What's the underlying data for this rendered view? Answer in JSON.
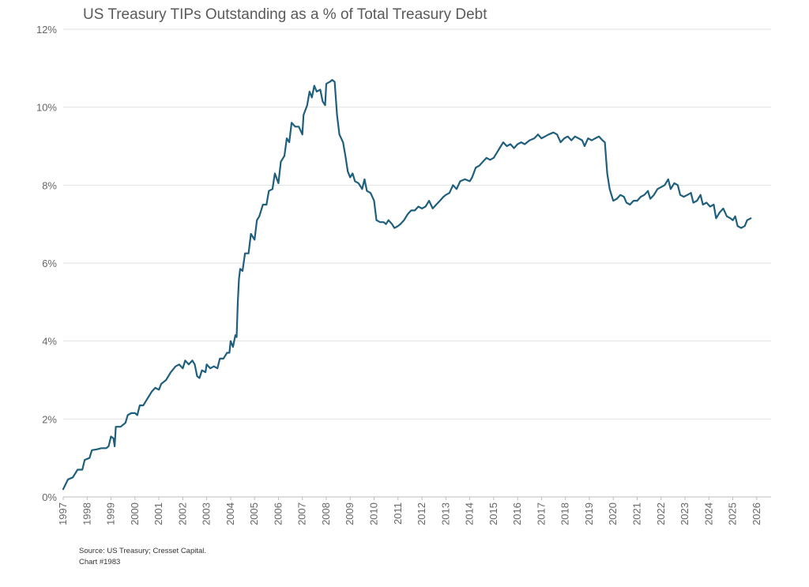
{
  "chart_data": {
    "type": "line",
    "title": "US Treasury TIPs Outstanding as a % of Total Treasury Debt",
    "xlabel": "",
    "ylabel": "",
    "x_ticks": [
      "1997",
      "1998",
      "1999",
      "2000",
      "2001",
      "2002",
      "2003",
      "2004",
      "2005",
      "2006",
      "2007",
      "2008",
      "2009",
      "2010",
      "2011",
      "2012",
      "2013",
      "2014",
      "2015",
      "2016",
      "2017",
      "2018",
      "2019",
      "2020",
      "2021",
      "2022",
      "2023",
      "2024",
      "2025",
      "2026"
    ],
    "y_ticks": [
      "0%",
      "2%",
      "4%",
      "6%",
      "8%",
      "10%",
      "12%"
    ],
    "xlim": [
      1997,
      2026.6
    ],
    "ylim": [
      0,
      12
    ],
    "grid": true,
    "color": "#1f5f7e",
    "series": [
      {
        "points": [
          [
            1997.0,
            0.2
          ],
          [
            1997.2,
            0.45
          ],
          [
            1997.4,
            0.5
          ],
          [
            1997.6,
            0.7
          ],
          [
            1997.8,
            0.7
          ],
          [
            1997.9,
            0.95
          ],
          [
            1998.1,
            1.0
          ],
          [
            1998.2,
            1.2
          ],
          [
            1998.4,
            1.22
          ],
          [
            1998.6,
            1.25
          ],
          [
            1998.8,
            1.25
          ],
          [
            1998.9,
            1.3
          ],
          [
            1999.0,
            1.55
          ],
          [
            1999.1,
            1.5
          ],
          [
            1999.15,
            1.3
          ],
          [
            1999.2,
            1.8
          ],
          [
            1999.4,
            1.8
          ],
          [
            1999.6,
            1.9
          ],
          [
            1999.7,
            2.1
          ],
          [
            1999.85,
            2.15
          ],
          [
            2000.0,
            2.15
          ],
          [
            2000.1,
            2.1
          ],
          [
            2000.2,
            2.35
          ],
          [
            2000.35,
            2.35
          ],
          [
            2000.5,
            2.5
          ],
          [
            2000.7,
            2.7
          ],
          [
            2000.85,
            2.8
          ],
          [
            2001.0,
            2.75
          ],
          [
            2001.1,
            2.9
          ],
          [
            2001.3,
            3.0
          ],
          [
            2001.5,
            3.2
          ],
          [
            2001.7,
            3.35
          ],
          [
            2001.85,
            3.4
          ],
          [
            2002.0,
            3.3
          ],
          [
            2002.1,
            3.5
          ],
          [
            2002.25,
            3.4
          ],
          [
            2002.4,
            3.5
          ],
          [
            2002.5,
            3.4
          ],
          [
            2002.6,
            3.1
          ],
          [
            2002.7,
            3.05
          ],
          [
            2002.8,
            3.25
          ],
          [
            2002.95,
            3.2
          ],
          [
            2003.0,
            3.4
          ],
          [
            2003.15,
            3.3
          ],
          [
            2003.3,
            3.35
          ],
          [
            2003.45,
            3.3
          ],
          [
            2003.55,
            3.55
          ],
          [
            2003.7,
            3.55
          ],
          [
            2003.85,
            3.7
          ],
          [
            2003.95,
            3.7
          ],
          [
            2004.0,
            4.0
          ],
          [
            2004.1,
            3.85
          ],
          [
            2004.2,
            4.15
          ],
          [
            2004.25,
            4.1
          ],
          [
            2004.3,
            5.0
          ],
          [
            2004.35,
            5.6
          ],
          [
            2004.4,
            5.85
          ],
          [
            2004.5,
            5.8
          ],
          [
            2004.6,
            6.25
          ],
          [
            2004.75,
            6.25
          ],
          [
            2004.85,
            6.75
          ],
          [
            2005.0,
            6.6
          ],
          [
            2005.1,
            7.1
          ],
          [
            2005.2,
            7.2
          ],
          [
            2005.35,
            7.5
          ],
          [
            2005.5,
            7.5
          ],
          [
            2005.6,
            7.85
          ],
          [
            2005.75,
            7.9
          ],
          [
            2005.85,
            8.3
          ],
          [
            2006.0,
            8.05
          ],
          [
            2006.1,
            8.6
          ],
          [
            2006.25,
            8.75
          ],
          [
            2006.35,
            9.2
          ],
          [
            2006.45,
            9.1
          ],
          [
            2006.55,
            9.6
          ],
          [
            2006.7,
            9.5
          ],
          [
            2006.85,
            9.5
          ],
          [
            2007.0,
            9.3
          ],
          [
            2007.05,
            9.8
          ],
          [
            2007.2,
            10.05
          ],
          [
            2007.3,
            10.4
          ],
          [
            2007.4,
            10.25
          ],
          [
            2007.5,
            10.55
          ],
          [
            2007.6,
            10.4
          ],
          [
            2007.75,
            10.45
          ],
          [
            2007.85,
            10.15
          ],
          [
            2007.95,
            10.05
          ],
          [
            2008.0,
            10.6
          ],
          [
            2008.15,
            10.65
          ],
          [
            2008.25,
            10.7
          ],
          [
            2008.35,
            10.65
          ],
          [
            2008.45,
            9.8
          ],
          [
            2008.55,
            9.3
          ],
          [
            2008.7,
            9.1
          ],
          [
            2008.8,
            8.75
          ],
          [
            2008.9,
            8.35
          ],
          [
            2009.0,
            8.2
          ],
          [
            2009.1,
            8.3
          ],
          [
            2009.2,
            8.1
          ],
          [
            2009.35,
            8.05
          ],
          [
            2009.5,
            7.9
          ],
          [
            2009.6,
            8.15
          ],
          [
            2009.7,
            7.85
          ],
          [
            2009.85,
            7.8
          ],
          [
            2010.0,
            7.6
          ],
          [
            2010.1,
            7.1
          ],
          [
            2010.25,
            7.05
          ],
          [
            2010.4,
            7.05
          ],
          [
            2010.5,
            7.0
          ],
          [
            2010.6,
            7.1
          ],
          [
            2010.75,
            7.0
          ],
          [
            2010.85,
            6.9
          ],
          [
            2011.0,
            6.95
          ],
          [
            2011.1,
            7.0
          ],
          [
            2011.25,
            7.1
          ],
          [
            2011.4,
            7.25
          ],
          [
            2011.55,
            7.35
          ],
          [
            2011.7,
            7.35
          ],
          [
            2011.85,
            7.45
          ],
          [
            2012.0,
            7.4
          ],
          [
            2012.15,
            7.45
          ],
          [
            2012.3,
            7.6
          ],
          [
            2012.45,
            7.4
          ],
          [
            2012.6,
            7.5
          ],
          [
            2012.75,
            7.6
          ],
          [
            2012.9,
            7.7
          ],
          [
            2013.0,
            7.75
          ],
          [
            2013.15,
            7.8
          ],
          [
            2013.3,
            8.0
          ],
          [
            2013.45,
            7.9
          ],
          [
            2013.6,
            8.1
          ],
          [
            2013.8,
            8.15
          ],
          [
            2014.0,
            8.1
          ],
          [
            2014.1,
            8.2
          ],
          [
            2014.25,
            8.45
          ],
          [
            2014.4,
            8.5
          ],
          [
            2014.55,
            8.6
          ],
          [
            2014.7,
            8.7
          ],
          [
            2014.85,
            8.65
          ],
          [
            2015.0,
            8.7
          ],
          [
            2015.1,
            8.8
          ],
          [
            2015.25,
            8.95
          ],
          [
            2015.4,
            9.1
          ],
          [
            2015.55,
            9.0
          ],
          [
            2015.7,
            9.05
          ],
          [
            2015.85,
            8.95
          ],
          [
            2016.0,
            9.05
          ],
          [
            2016.15,
            9.1
          ],
          [
            2016.3,
            9.05
          ],
          [
            2016.5,
            9.15
          ],
          [
            2016.7,
            9.2
          ],
          [
            2016.85,
            9.3
          ],
          [
            2017.0,
            9.2
          ],
          [
            2017.15,
            9.25
          ],
          [
            2017.3,
            9.3
          ],
          [
            2017.5,
            9.35
          ],
          [
            2017.65,
            9.3
          ],
          [
            2017.8,
            9.1
          ],
          [
            2017.95,
            9.2
          ],
          [
            2018.1,
            9.25
          ],
          [
            2018.25,
            9.15
          ],
          [
            2018.4,
            9.25
          ],
          [
            2018.55,
            9.2
          ],
          [
            2018.7,
            9.15
          ],
          [
            2018.8,
            9.0
          ],
          [
            2018.95,
            9.2
          ],
          [
            2019.1,
            9.15
          ],
          [
            2019.25,
            9.2
          ],
          [
            2019.4,
            9.25
          ],
          [
            2019.55,
            9.15
          ],
          [
            2019.65,
            9.1
          ],
          [
            2019.75,
            8.3
          ],
          [
            2019.85,
            7.9
          ],
          [
            2020.0,
            7.6
          ],
          [
            2020.15,
            7.65
          ],
          [
            2020.3,
            7.75
          ],
          [
            2020.45,
            7.7
          ],
          [
            2020.55,
            7.55
          ],
          [
            2020.7,
            7.5
          ],
          [
            2020.85,
            7.6
          ],
          [
            2021.0,
            7.6
          ],
          [
            2021.15,
            7.7
          ],
          [
            2021.3,
            7.75
          ],
          [
            2021.45,
            7.85
          ],
          [
            2021.55,
            7.65
          ],
          [
            2021.7,
            7.75
          ],
          [
            2021.85,
            7.9
          ],
          [
            2022.0,
            7.95
          ],
          [
            2022.15,
            8.0
          ],
          [
            2022.3,
            8.15
          ],
          [
            2022.4,
            7.9
          ],
          [
            2022.55,
            8.05
          ],
          [
            2022.7,
            8.0
          ],
          [
            2022.8,
            7.75
          ],
          [
            2022.95,
            7.7
          ],
          [
            2023.1,
            7.75
          ],
          [
            2023.25,
            7.8
          ],
          [
            2023.35,
            7.55
          ],
          [
            2023.5,
            7.6
          ],
          [
            2023.65,
            7.75
          ],
          [
            2023.75,
            7.5
          ],
          [
            2023.9,
            7.55
          ],
          [
            2024.05,
            7.45
          ],
          [
            2024.2,
            7.5
          ],
          [
            2024.3,
            7.15
          ],
          [
            2024.45,
            7.3
          ],
          [
            2024.6,
            7.4
          ],
          [
            2024.75,
            7.2
          ],
          [
            2024.9,
            7.15
          ],
          [
            2025.0,
            7.1
          ],
          [
            2025.1,
            7.2
          ],
          [
            2025.2,
            6.95
          ],
          [
            2025.35,
            6.9
          ],
          [
            2025.5,
            6.95
          ],
          [
            2025.6,
            7.1
          ],
          [
            2025.75,
            7.15
          ]
        ]
      }
    ],
    "notes": [
      "Source: US Treasury; Cresset Capital.",
      "Chart #1983"
    ]
  }
}
